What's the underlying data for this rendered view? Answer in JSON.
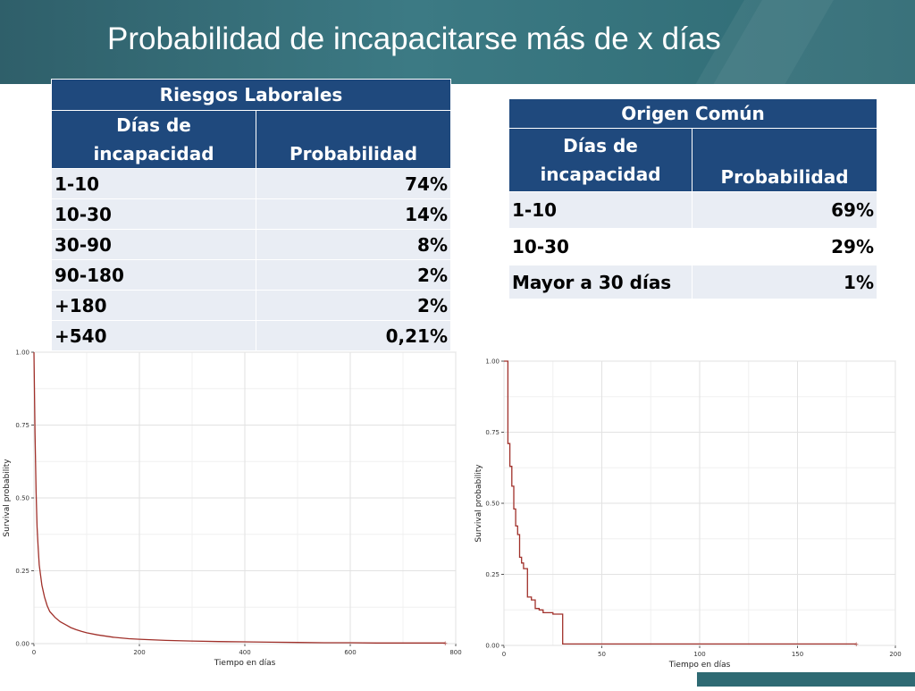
{
  "title": "Probabilidad de incapacitarse más de x días",
  "tables": [
    {
      "title": "Riesgos Laborales",
      "col1": "Días de incapacidad",
      "col2": "Probabilidad",
      "rows": [
        {
          "range": "1-10",
          "value": "74%"
        },
        {
          "range": "10-30",
          "value": "14%"
        },
        {
          "range": "30-90",
          "value": "8%"
        },
        {
          "range": "90-180",
          "value": "2%"
        },
        {
          "range": "+180",
          "value": "2%"
        },
        {
          "range": "+540",
          "value": "0,21%"
        }
      ]
    },
    {
      "title": "Origen Común",
      "col1": "Días de incapacidad",
      "col2": "Probabilidad",
      "rows": [
        {
          "range": "1-10",
          "value": "69%"
        },
        {
          "range": "10-30",
          "value": "29%"
        },
        {
          "range": "Mayor a 30 días",
          "value": "1%"
        }
      ]
    }
  ],
  "chart_data": [
    {
      "type": "line",
      "xlabel": "Tiempo en días",
      "ylabel": "Survival probability",
      "xlim": [
        0,
        800
      ],
      "ylim": [
        0,
        1
      ],
      "xticks": [
        0,
        200,
        400,
        600,
        800
      ],
      "yticks": [
        "0.00",
        "0.25",
        "0.50",
        "0.75",
        "1.00"
      ],
      "grid": true,
      "color": "#a0302a",
      "series": [
        {
          "x": [
            0,
            2,
            4,
            6,
            8,
            10,
            15,
            20,
            25,
            30,
            40,
            50,
            60,
            70,
            80,
            90,
            100,
            120,
            150,
            180,
            200,
            250,
            300,
            350,
            400,
            450,
            500,
            550,
            600,
            650,
            700,
            780
          ],
          "y": [
            1.0,
            0.72,
            0.52,
            0.4,
            0.33,
            0.27,
            0.2,
            0.16,
            0.13,
            0.11,
            0.09,
            0.075,
            0.065,
            0.055,
            0.048,
            0.042,
            0.037,
            0.03,
            0.022,
            0.017,
            0.015,
            0.011,
            0.009,
            0.007,
            0.006,
            0.005,
            0.004,
            0.003,
            0.003,
            0.002,
            0.002,
            0.002
          ]
        }
      ]
    },
    {
      "type": "line",
      "xlabel": "Tiempo en días",
      "ylabel": "Survival probability",
      "xlim": [
        0,
        200
      ],
      "ylim": [
        0,
        1
      ],
      "xticks": [
        0,
        50,
        100,
        150,
        200
      ],
      "yticks": [
        "0.00",
        "0.25",
        "0.50",
        "0.75",
        "1.00"
      ],
      "grid": true,
      "color": "#a0302a",
      "series": [
        {
          "x": [
            0,
            2,
            2,
            3,
            3,
            4,
            4,
            5,
            5,
            6,
            6,
            7,
            7,
            8,
            8,
            9,
            9,
            10,
            10,
            12,
            12,
            14,
            14,
            16,
            16,
            18,
            18,
            20,
            20,
            25,
            25,
            30,
            30,
            180
          ],
          "y": [
            1.0,
            1.0,
            0.71,
            0.71,
            0.63,
            0.63,
            0.56,
            0.56,
            0.48,
            0.48,
            0.42,
            0.42,
            0.39,
            0.39,
            0.31,
            0.31,
            0.29,
            0.29,
            0.27,
            0.27,
            0.17,
            0.17,
            0.16,
            0.16,
            0.13,
            0.13,
            0.125,
            0.125,
            0.115,
            0.115,
            0.11,
            0.11,
            0.005,
            0.005
          ]
        }
      ]
    }
  ]
}
